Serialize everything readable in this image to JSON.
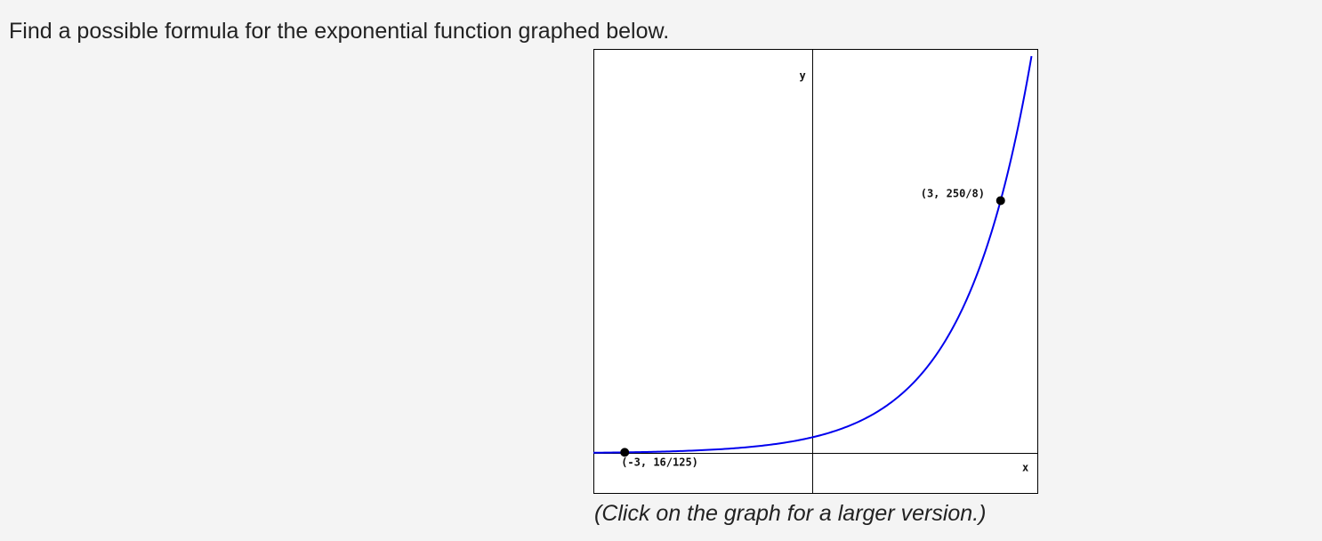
{
  "question": {
    "text": "Find a possible formula for the exponential function graphed below."
  },
  "graph": {
    "caption": "(Click on the graph for a larger version.)",
    "axis_labels": {
      "y": "y",
      "x": "x"
    },
    "points": [
      {
        "label": "(-3, 16/125)",
        "x": -3,
        "y": 0.128
      },
      {
        "label": "(3, 250/8)",
        "x": 3,
        "y": 31.25
      }
    ],
    "colors": {
      "curve": "#0000ee",
      "axes": "#000000",
      "points": "#000000"
    },
    "chart_data": {
      "type": "line",
      "function": "y = 2*(2.5)^x",
      "series": [
        {
          "x": [
            -3.5,
            -3,
            -2,
            -1,
            0,
            1,
            2,
            3,
            3.6
          ],
          "y": [
            0.081,
            0.128,
            0.32,
            0.8,
            2,
            5,
            12.5,
            31.25,
            54.1
          ]
        }
      ],
      "xlim": [
        -3.5,
        3.6
      ],
      "ylim": [
        -5,
        50
      ],
      "grid": false
    }
  }
}
